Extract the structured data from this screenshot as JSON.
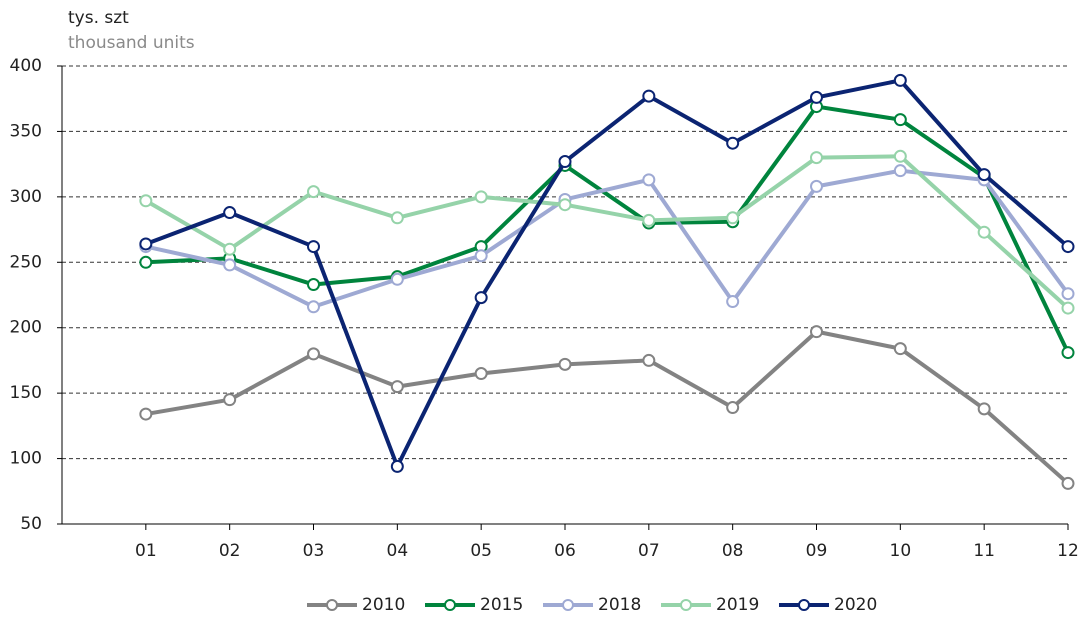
{
  "chart_data": {
    "type": "line",
    "title": "tys. szt",
    "subtitle": "thousand units",
    "categories": [
      "01",
      "02",
      "03",
      "04",
      "05",
      "06",
      "07",
      "08",
      "09",
      "10",
      "11",
      "12"
    ],
    "series": [
      {
        "name": "2010",
        "color": "#838383",
        "values": [
          134,
          145,
          180,
          155,
          165,
          172,
          175,
          139,
          197,
          184,
          138,
          81
        ]
      },
      {
        "name": "2015",
        "color": "#00843d",
        "values": [
          250,
          253,
          233,
          239,
          262,
          324,
          280,
          281,
          369,
          359,
          315,
          181
        ]
      },
      {
        "name": "2018",
        "color": "#9ea9d3",
        "values": [
          262,
          248,
          216,
          237,
          255,
          298,
          313,
          220,
          308,
          320,
          313,
          226
        ]
      },
      {
        "name": "2019",
        "color": "#95d3a9",
        "values": [
          297,
          260,
          304,
          284,
          300,
          294,
          282,
          284,
          330,
          331,
          273,
          215
        ]
      },
      {
        "name": "2020",
        "color": "#0b2472",
        "values": [
          264,
          288,
          262,
          94,
          223,
          327,
          377,
          341,
          376,
          389,
          317,
          262
        ]
      }
    ],
    "ylim": [
      50,
      400
    ],
    "yticks": [
      50,
      100,
      150,
      200,
      250,
      300,
      350,
      400
    ],
    "grid": true
  }
}
